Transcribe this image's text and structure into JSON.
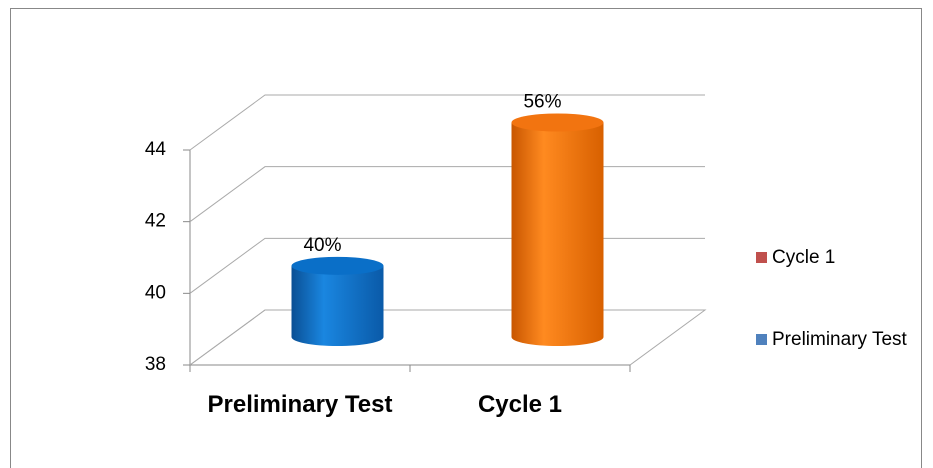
{
  "chart_data": {
    "type": "bar3d",
    "categories": [
      "Preliminary Test",
      "Cycle 1"
    ],
    "values": [
      40,
      56
    ],
    "value_labels": [
      "40%",
      "56%"
    ],
    "colors": [
      "#0a6fc8",
      "#f27410"
    ],
    "ylim": [
      38,
      44
    ],
    "yticks": [
      38,
      40,
      42,
      44
    ],
    "grid": true,
    "legend": [
      {
        "name": "Cycle 1",
        "color": "#c0504d"
      },
      {
        "name": "Preliminary Test",
        "color": "#4f81bd"
      }
    ],
    "legend_position": "right"
  }
}
